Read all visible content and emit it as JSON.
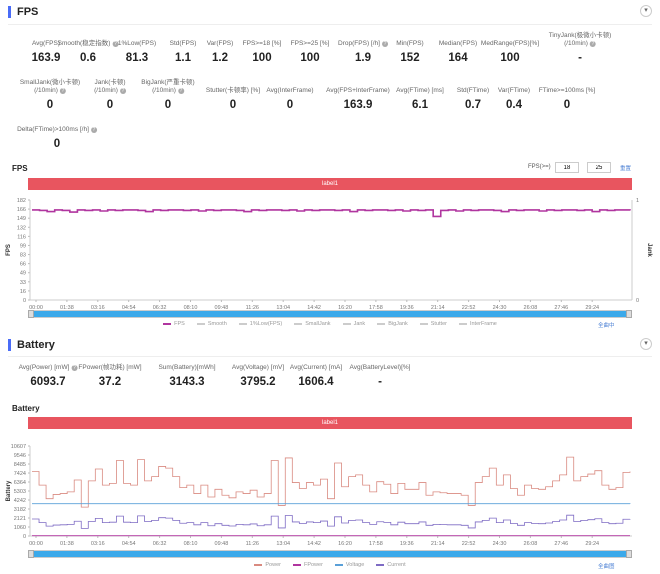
{
  "fps_section": {
    "title": "FPS",
    "collapse_icon": "chevron-down-icon",
    "stats": [
      {
        "label": "Avg(FPS)",
        "value": "163.9"
      },
      {
        "label": "Smooth(稳定指数)",
        "value": "0.6",
        "help": true
      },
      {
        "label": "1%Low(FPS)",
        "value": "81.3"
      },
      {
        "label": "Std(FPS)",
        "value": "1.1"
      },
      {
        "label": "Var(FPS)",
        "value": "1.2"
      },
      {
        "label": "FPS>=18 [%]",
        "value": "100"
      },
      {
        "label": "FPS>=25 [%]",
        "value": "100"
      },
      {
        "label": "Drop(FPS) [/h]",
        "value": "1.9",
        "help": true
      },
      {
        "label": "Min(FPS)",
        "value": "152"
      },
      {
        "label": "Median(FPS)",
        "value": "164"
      },
      {
        "label": "MedRange(FPS)[%]",
        "value": "100"
      },
      {
        "label": "TinyJank(极微小卡顿)\n(/10min)",
        "value": "-",
        "help": true
      },
      {
        "label": "SmallJank(微小卡顿)\n(/10min)",
        "value": "0",
        "help": true
      },
      {
        "label": "Jank(卡顿)\n(/10min)",
        "value": "0",
        "help": true
      },
      {
        "label": "BigJank(严重卡顿)\n(/10min)",
        "value": "0",
        "help": true
      },
      {
        "label": "Stutter(卡顿率) [%]",
        "value": "0"
      },
      {
        "label": "Avg(InterFrame)",
        "value": "0"
      },
      {
        "label": "Avg(FPS+InterFrame)",
        "value": "163.9"
      },
      {
        "label": "Avg(FTime) [ms]",
        "value": "6.1"
      },
      {
        "label": "Std(FTime)",
        "value": "0.7"
      },
      {
        "label": "Var(FTime)",
        "value": "0.4"
      },
      {
        "label": "FTime>=100ms [%]",
        "value": "0"
      },
      {
        "label": "Delta(FTime)>100ms [/h]",
        "value": "0",
        "help": true
      }
    ],
    "chart_title": "FPS",
    "threshold_label": "FPS(>=)",
    "threshold_1": "18",
    "threshold_2": "25",
    "reset_label": "重置",
    "label_bar": "label1",
    "zoom_label": "全曲中"
  },
  "battery_section": {
    "title": "Battery",
    "collapse_icon": "chevron-down-icon",
    "stats": [
      {
        "label": "Avg(Power) [mW]",
        "value": "6093.7",
        "help": true
      },
      {
        "label": "FPower(帧功耗) [mW]",
        "value": "37.2"
      },
      {
        "label": "Sum(Battery)[mWh]",
        "value": "3143.3"
      },
      {
        "label": "Avg(Voltage) [mV]",
        "value": "3795.2"
      },
      {
        "label": "Avg(Current) [mA]",
        "value": "1606.4"
      },
      {
        "label": "Avg(BatteryLevel)[%]",
        "value": "-"
      }
    ],
    "chart_title": "Battery",
    "label_bar": "label1",
    "zoom_label": "全曲图"
  },
  "watermark": "PerfDog",
  "chart_data": [
    {
      "type": "line",
      "ylabel": "FPS",
      "y2label": "Jank",
      "ylim": [
        0,
        182
      ],
      "y2lim": [
        0,
        1
      ],
      "yticks": [
        "182",
        "166",
        "149",
        "132",
        "116",
        "99",
        "83",
        "66",
        "49",
        "33",
        "16",
        "0"
      ],
      "y2ticks": [
        "1",
        "0"
      ],
      "xticks": [
        "00:00",
        "01:38",
        "03:16",
        "04:54",
        "06:32",
        "08:10",
        "09:48",
        "11:26",
        "13:04",
        "14:42",
        "16:20",
        "17:58",
        "19:36",
        "21:14",
        "22:52",
        "24:30",
        "26:08",
        "27:46",
        "29:24"
      ],
      "legend": [
        {
          "name": "FPS",
          "color": "#b0359f"
        },
        {
          "name": "Smooth",
          "color": "#ccc"
        },
        {
          "name": "1%Low(FPS)",
          "color": "#ccc"
        },
        {
          "name": "SmallJank",
          "color": "#ccc"
        },
        {
          "name": "Jank",
          "color": "#ccc"
        },
        {
          "name": "BigJank",
          "color": "#ccc"
        },
        {
          "name": "Stutter",
          "color": "#ccc"
        },
        {
          "name": "InterFrame",
          "color": "#ccc"
        }
      ],
      "series": [
        {
          "name": "FPS",
          "color": "#b0359f",
          "values": [
            164,
            163,
            161,
            164,
            163,
            160,
            164,
            163,
            164,
            162,
            164,
            163,
            164,
            164,
            163,
            161,
            164,
            163,
            164,
            164,
            163,
            164,
            162,
            164,
            163,
            164,
            164,
            163,
            161,
            164,
            163,
            164,
            164,
            163,
            164,
            162,
            164,
            163,
            164,
            164,
            163,
            164,
            161,
            164,
            163,
            164,
            164,
            163,
            164,
            162,
            164,
            163,
            164,
            152,
            163,
            164,
            162,
            164,
            163,
            164,
            164,
            163,
            161,
            164,
            163,
            164,
            164,
            162,
            164,
            163,
            164,
            164,
            163,
            164,
            161,
            164,
            163,
            164,
            164,
            163
          ]
        }
      ]
    },
    {
      "type": "line",
      "ylabel": "Battery",
      "ylim": [
        0,
        10607
      ],
      "yticks": [
        "10607",
        "9546",
        "8485",
        "7424",
        "6364",
        "5303",
        "4242",
        "3182",
        "2121",
        "1060",
        "0"
      ],
      "xticks": [
        "00:00",
        "01:38",
        "03:16",
        "04:54",
        "06:32",
        "08:10",
        "09:48",
        "11:26",
        "13:04",
        "14:42",
        "16:20",
        "17:58",
        "19:36",
        "21:14",
        "22:52",
        "24:30",
        "26:08",
        "27:46",
        "29:24"
      ],
      "series": [
        {
          "name": "Power",
          "color": "#d98a80",
          "values": [
            7600,
            6000,
            4400,
            4900,
            5000,
            5200,
            6600,
            3400,
            6500,
            7900,
            6000,
            6200,
            8900,
            6200,
            6000,
            9000,
            6500,
            7000,
            8200,
            8000,
            7000,
            5700,
            6000,
            5000,
            6000,
            4600,
            5500,
            4800,
            4500,
            5200,
            5000,
            5400,
            4600,
            5000,
            8900,
            3600,
            9200,
            6300,
            5600,
            6300,
            6000,
            6700,
            4400,
            8600,
            5800,
            7000,
            7200,
            6000,
            5200,
            6400,
            6100,
            5000,
            6200,
            5500,
            5500,
            6300,
            4800,
            5200,
            5100,
            5000,
            5000,
            4800,
            3600,
            6300,
            7000,
            8000,
            6000,
            7200,
            5600,
            4800,
            6000,
            5600,
            5500,
            5800,
            6500,
            7200,
            9300,
            6500,
            7000,
            7300,
            7700,
            6000,
            5500,
            5700,
            7500,
            7600
          ]
        },
        {
          "name": "FPower",
          "color": "#b0359f",
          "values": [
            37,
            37
          ]
        },
        {
          "name": "Voltage",
          "color": "#5aa0d8",
          "values": [
            3810,
            3770
          ]
        },
        {
          "name": "Current",
          "color": "#7e6bc4",
          "values": [
            2000,
            1580,
            1160,
            1290,
            1320,
            1370,
            1740,
            900,
            1710,
            2080,
            1580,
            1630,
            2340,
            1630,
            1580,
            2370,
            1710,
            1840,
            2160,
            2110,
            1840,
            1500,
            1580,
            1320,
            1580,
            1210,
            1450,
            1260,
            1180,
            1370,
            1320,
            1420,
            1210,
            1320,
            2340,
            950,
            2420,
            1660,
            1470,
            1660,
            1580,
            1760,
            1160,
            2260,
            1530,
            1840,
            1890,
            1580,
            1370,
            1680,
            1610,
            1320,
            1630,
            1450,
            1450,
            1660,
            1260,
            1370,
            1340,
            1320,
            1320,
            1260,
            950,
            1660,
            1840,
            2110,
            1580,
            1890,
            1470,
            1260,
            1580,
            1470,
            1450,
            1530,
            1710,
            1890,
            2450,
            1710,
            1840,
            1920,
            2030,
            1580,
            1450,
            1500,
            1970,
            2000
          ]
        }
      ]
    }
  ]
}
